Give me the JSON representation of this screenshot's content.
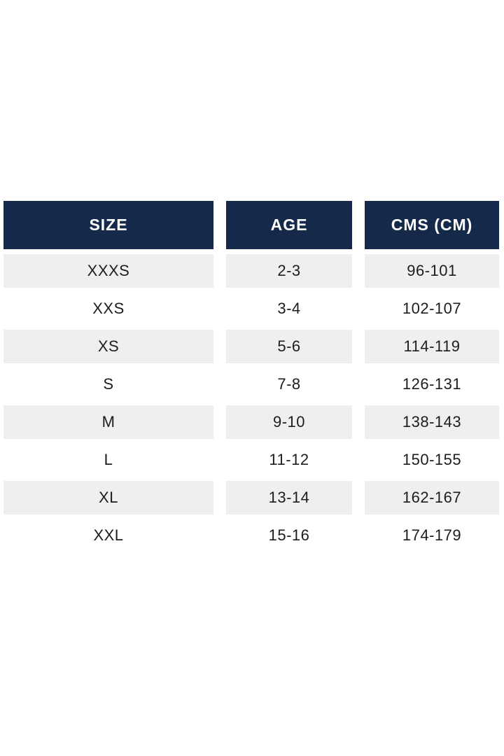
{
  "page": {
    "background": "#ffffff"
  },
  "table": {
    "title": "size-chart",
    "header_bg": "#152a4a",
    "header_text_color": "#ffffff",
    "alt_row_bg": "#efefef",
    "cell_text_color": "#1d1d1d",
    "columns": [
      "SIZE",
      "AGE",
      "CMS (CM)"
    ],
    "rows": [
      {
        "size": "XXXS",
        "age": "2-3",
        "cms": "96-101"
      },
      {
        "size": "XXS",
        "age": "3-4",
        "cms": "102-107"
      },
      {
        "size": "XS",
        "age": "5-6",
        "cms": "114-119"
      },
      {
        "size": "S",
        "age": "7-8",
        "cms": "126-131"
      },
      {
        "size": "M",
        "age": "9-10",
        "cms": "138-143"
      },
      {
        "size": "L",
        "age": "11-12",
        "cms": "150-155"
      },
      {
        "size": "XL",
        "age": "13-14",
        "cms": "162-167"
      },
      {
        "size": "XXL",
        "age": "15-16",
        "cms": "174-179"
      }
    ]
  }
}
